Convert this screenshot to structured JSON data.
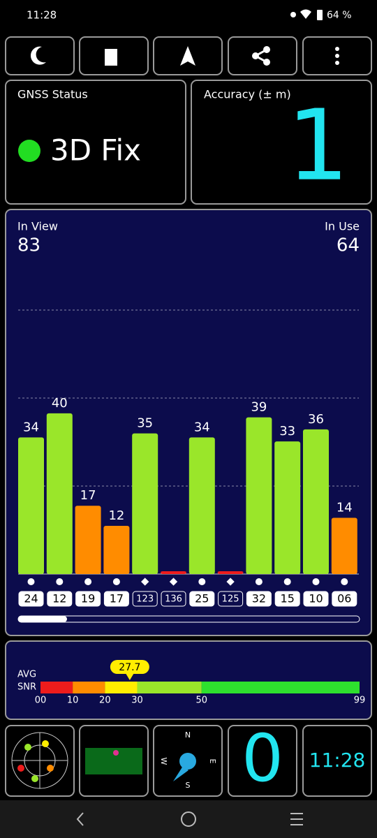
{
  "status_bar": {
    "time": "11:28",
    "battery": "64 %"
  },
  "gnss_status": {
    "label": "GNSS Status",
    "value": "3D Fix"
  },
  "accuracy": {
    "label": "Accuracy (± m)",
    "value": "1"
  },
  "satellites": {
    "in_view_label": "In View",
    "in_view": 83,
    "in_use_label": "In Use",
    "in_use": 64,
    "ylim": [
      0,
      87.6
    ],
    "ids": [
      "24",
      "12",
      "19",
      "17",
      "123",
      "136",
      "25",
      "125",
      "32",
      "15",
      "10",
      "06"
    ],
    "markers": [
      "circle",
      "circle",
      "circle",
      "circle",
      "diamond",
      "diamond",
      "circle",
      "diamond",
      "circle",
      "circle",
      "circle",
      "circle"
    ],
    "values": [
      34,
      40,
      17,
      12,
      35,
      0,
      34,
      0,
      39,
      33,
      36,
      14
    ]
  },
  "snr": {
    "label_1": "AVG",
    "label_2": "SNR",
    "average": 27.7,
    "xlim": [
      0,
      99
    ],
    "segments": [
      {
        "from": 0,
        "to": 10,
        "color": "#ee1c1c"
      },
      {
        "from": 10,
        "to": 20,
        "color": "#ff8c00"
      },
      {
        "from": 20,
        "to": 30,
        "color": "#ffee00"
      },
      {
        "from": 30,
        "to": 50,
        "color": "#9ae62a"
      },
      {
        "from": 50,
        "to": 99,
        "color": "#2ee02e"
      }
    ],
    "xticks": [
      {
        "value": 0,
        "label": "00"
      },
      10,
      20,
      30,
      50,
      99
    ]
  },
  "tiles": {
    "compass": [
      "N",
      "E",
      "S",
      "W"
    ],
    "count": "0",
    "clock": "11:28"
  }
}
